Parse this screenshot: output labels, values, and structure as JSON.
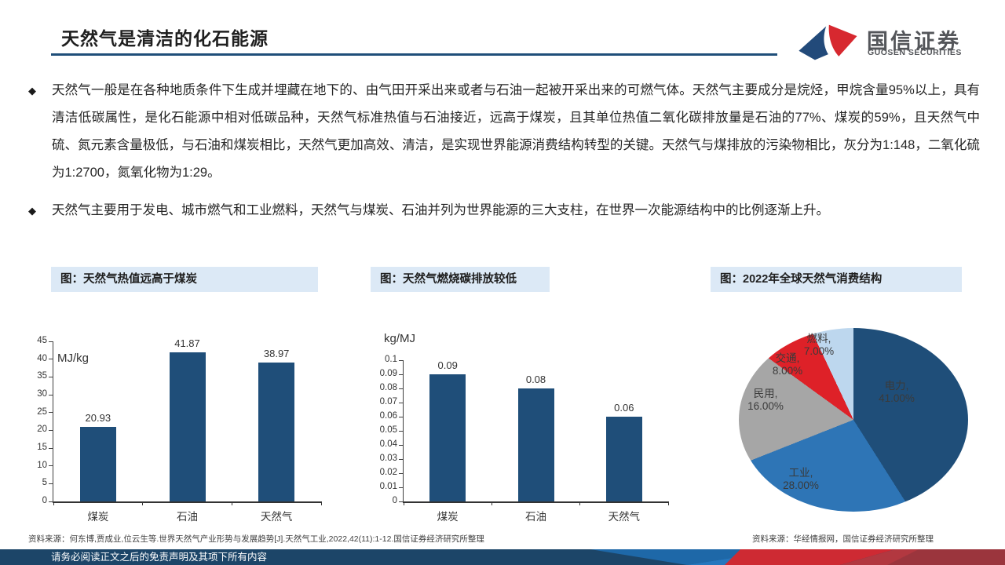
{
  "header": {
    "title": "天然气是清洁的化石能源",
    "logo_cn": "国信证券",
    "logo_en": "GUOSEN SECURITIES"
  },
  "bullets": [
    {
      "text": "天然气一般是在各种地质条件下生成并埋藏在地下的、由气田开采出来或者与石油一起被开采出来的可燃气体。天然气主要成分是烷烃，甲烷含量95%以上，具有清洁低碳属性，是化石能源中相对低碳品种，天然气标准热值与石油接近，远高于煤炭，且其单位热值二氧化碳排放量是石油的77%、煤炭的59%，且天然气中硫、氮元素含量极低，与石油和煤炭相比，天然气更加高效、清洁，是实现世界能源消费结构转型的关键。天然气与煤排放的污染物相比，灰分为1:148，二氧化硫为1:2700，氮氧化物为1:29。"
    },
    {
      "text": "天然气主要用于发电、城市燃气和工业燃料，天然气与煤炭、石油并列为世界能源的三大支柱，在世界一次能源结构中的比例逐渐上升。"
    }
  ],
  "chart_data": [
    {
      "type": "bar",
      "caption": "图：天然气热值远高于煤炭",
      "title": "天然气热值远高于煤炭",
      "unit": "MJ/kg",
      "categories": [
        "煤炭",
        "石油",
        "天然气"
      ],
      "values": [
        20.93,
        41.87,
        38.97
      ],
      "labels": [
        "20.93",
        "41.87",
        "38.97"
      ],
      "ylim": [
        0,
        45
      ],
      "yticks": [
        "0",
        "5",
        "10",
        "15",
        "20",
        "25",
        "30",
        "35",
        "40",
        "45"
      ],
      "bar_color": "#1F4E79",
      "grid": false,
      "legend": "none"
    },
    {
      "type": "bar",
      "caption": "图：天然气燃烧碳排放较低",
      "title": "天然气燃烧碳排放较低",
      "unit": "kg/MJ",
      "categories": [
        "煤炭",
        "石油",
        "天然气"
      ],
      "values": [
        0.09,
        0.08,
        0.06
      ],
      "labels": [
        "0.09",
        "0.08",
        "0.06"
      ],
      "ylim": [
        0,
        0.1
      ],
      "yticks": [
        "0",
        "0.01",
        "0.02",
        "0.03",
        "0.04",
        "0.05",
        "0.06",
        "0.07",
        "0.08",
        "0.09",
        "0.1"
      ],
      "bar_color": "#1F4E79",
      "grid": false,
      "legend": "none"
    },
    {
      "type": "pie",
      "caption": "图：2022年全球天然气消费结构",
      "title": "2022年全球天然气消费结构",
      "slices": [
        {
          "name": "电力",
          "label": "电力,",
          "value": 41,
          "pct": "41.00%",
          "color": "#1F4E79"
        },
        {
          "name": "工业",
          "label": "工业,",
          "value": 28,
          "pct": "28.00%",
          "color": "#2E75B6"
        },
        {
          "name": "民用",
          "label": "民用,",
          "value": 16,
          "pct": "16.00%",
          "color": "#A6A6A6"
        },
        {
          "name": "交通",
          "label": "交通,",
          "value": 8,
          "pct": "8.00%",
          "color": "#DE2128"
        },
        {
          "name": "燃料",
          "label": "燃料,",
          "value": 7,
          "pct": "7.00%",
          "color": "#BDD7EE"
        }
      ],
      "legend": "none"
    }
  ],
  "sources": {
    "left": "资料来源：何东博,贾成业,位云生等.世界天然气产业形势与发展趋势[J].天然气工业,2022,42(11):1-12.国信证券经济研究所整理",
    "right": "资料来源：华经情报网，国信证券经济研究所整理"
  },
  "footer": {
    "disclaimer": "请务必阅读正文之后的免责声明及其项下所有内容"
  },
  "colors": {
    "accent_navy": "#1F4E79",
    "caption_bg": "#DCE9F6",
    "logo_blue": "#224A7A",
    "logo_red": "#D7282F",
    "footer_navy": "#1C4568"
  }
}
